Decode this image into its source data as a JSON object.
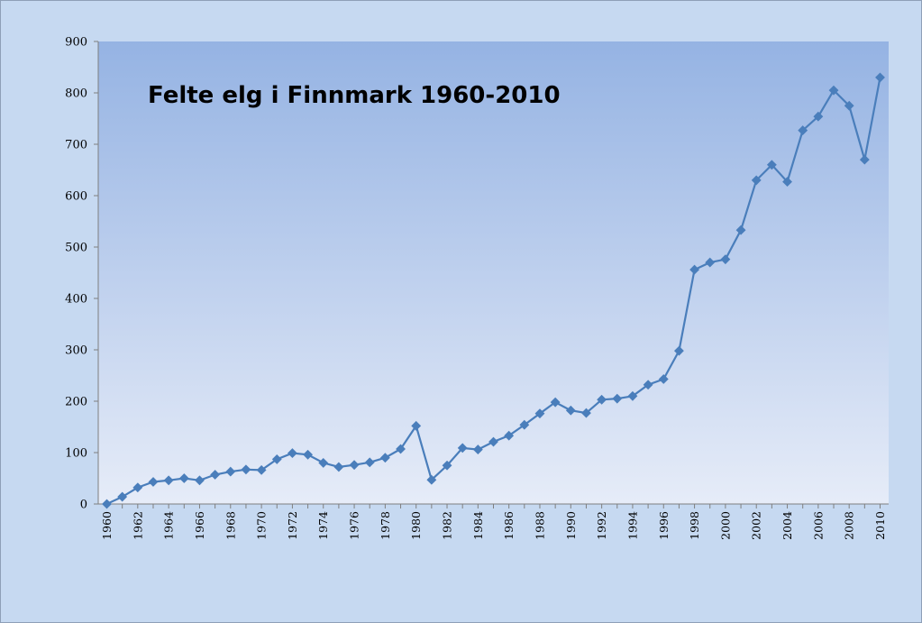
{
  "chart_data": {
    "type": "line",
    "title": "Felte elg i Finnmark 1960-2010",
    "xlabel": "",
    "ylabel": "",
    "ylim": [
      0,
      900
    ],
    "yticks": [
      0,
      100,
      200,
      300,
      400,
      500,
      600,
      700,
      800,
      900
    ],
    "xlim": [
      1960,
      2010
    ],
    "xticks": [
      1960,
      1962,
      1964,
      1966,
      1968,
      1970,
      1972,
      1974,
      1976,
      1978,
      1980,
      1982,
      1984,
      1986,
      1988,
      1990,
      1992,
      1994,
      1996,
      1998,
      2000,
      2002,
      2004,
      2006,
      2008,
      2010
    ],
    "grid": false,
    "legend": "none",
    "series": [
      {
        "color": "#4a7ebb",
        "marker": "diamond",
        "x": [
          1960,
          1961,
          1962,
          1963,
          1964,
          1965,
          1966,
          1967,
          1968,
          1969,
          1970,
          1971,
          1972,
          1973,
          1974,
          1975,
          1976,
          1977,
          1978,
          1979,
          1980,
          1981,
          1982,
          1983,
          1984,
          1985,
          1986,
          1987,
          1988,
          1989,
          1990,
          1991,
          1992,
          1993,
          1994,
          1995,
          1996,
          1997,
          1998,
          1999,
          2000,
          2001,
          2002,
          2003,
          2004,
          2005,
          2006,
          2007,
          2008,
          2009,
          2010
        ],
        "values": [
          0,
          14,
          32,
          43,
          46,
          50,
          46,
          57,
          63,
          67,
          66,
          87,
          99,
          96,
          80,
          72,
          76,
          81,
          90,
          107,
          152,
          47,
          75,
          109,
          106,
          121,
          133,
          154,
          176,
          198,
          182,
          177,
          203,
          205,
          210,
          232,
          243,
          298,
          456,
          470,
          476,
          533,
          630,
          660,
          627,
          727,
          754,
          805,
          775,
          670,
          830
        ]
      }
    ]
  }
}
